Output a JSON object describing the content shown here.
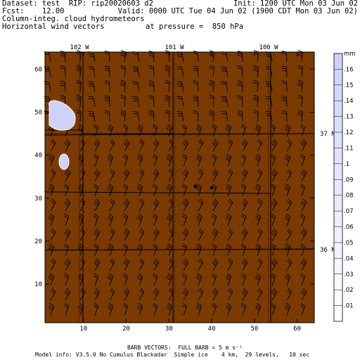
{
  "header": {
    "dataset": "Dataset: test  RIP: rip20020603 d2",
    "init": "Init: 1200 UTC Mon 03 Jun 02",
    "fcst": "Fcst:    12.00",
    "valid": "Valid: 0000 UTC Tue 04 Jun 02 (1900 CDT Mon 03 Jun 02)",
    "field1": "Column-integ. cloud hydrometeors",
    "field2": "Horizontal wind vectors",
    "pressure": "at pressure =  850 hPa"
  },
  "map": {
    "x_ticks": [
      "10",
      "20",
      "30",
      "40",
      "50",
      "60"
    ],
    "y_ticks": [
      "10",
      "20",
      "30",
      "40",
      "50",
      "60"
    ],
    "lon_labels": [
      "102 W",
      "101 W",
      "100 W"
    ],
    "lat_labels": [
      "37 N",
      "36 N"
    ],
    "x_range": [
      1,
      64
    ],
    "y_range": [
      1,
      64
    ],
    "land_color": "#7a3a00",
    "cloud_color": "#d0d0f8"
  },
  "colorbar": {
    "unit": "mm",
    "labels": [
      ".16",
      ".15",
      ".14",
      ".13",
      ".12",
      ".11",
      ".1",
      ".09",
      ".08",
      ".07",
      ".06",
      ".05",
      ".04",
      ".03",
      ".02",
      ".01"
    ]
  },
  "footer": {
    "barb": "BARB VECTORS:  FULL BARB = 5 m s⁻¹",
    "model": "Model info: V3.5.0 No Cumulus Blackadar  Simple ice    4 km,  29 levels,   10 sec"
  }
}
